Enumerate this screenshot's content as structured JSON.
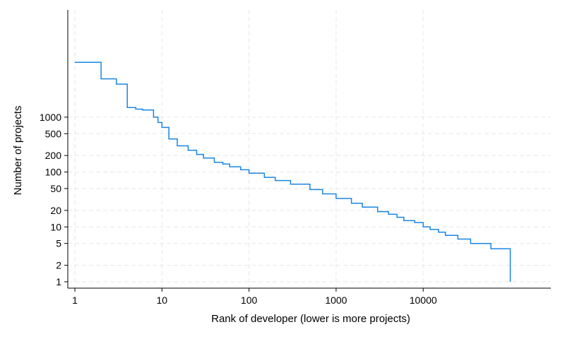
{
  "chart_data": {
    "type": "line",
    "title": "",
    "xlabel": "Rank of developer (lower is more projects)",
    "ylabel": "Number of projects",
    "x_scale": "log",
    "y_scale": "log",
    "xlim": [
      1,
      100000
    ],
    "grid": true,
    "line_style": "step",
    "colors": {
      "line": "#1a86e0",
      "grid": "#e6e6e6"
    },
    "x_ticks": [
      {
        "value": 1,
        "label": "1"
      },
      {
        "value": 10,
        "label": "10"
      },
      {
        "value": 100,
        "label": "100"
      },
      {
        "value": 1000,
        "label": "1000"
      },
      {
        "value": 10000,
        "label": "10000"
      }
    ],
    "y_ticks": [
      {
        "value": 1,
        "label": "1"
      },
      {
        "value": 2,
        "label": "2"
      },
      {
        "value": 5,
        "label": "5"
      },
      {
        "value": 10,
        "label": "10"
      },
      {
        "value": 20,
        "label": "20"
      },
      {
        "value": 50,
        "label": "50"
      },
      {
        "value": 100,
        "label": "100"
      },
      {
        "value": 200,
        "label": "200"
      },
      {
        "value": 500,
        "label": "500"
      },
      {
        "value": 1000,
        "label": "1000"
      }
    ],
    "series": [
      {
        "x": [
          1,
          2,
          3,
          4,
          5,
          6,
          7,
          8,
          9,
          10,
          12,
          15,
          20,
          25,
          30,
          40,
          50,
          60,
          80,
          100,
          150,
          200,
          300,
          500,
          700,
          1000,
          1500,
          2000,
          3000,
          4000,
          5000,
          6000,
          8000,
          10000,
          12000,
          15000,
          18000,
          25000,
          35000,
          60000,
          100000,
          100000
        ],
        "y": [
          10000,
          5000,
          4000,
          1500,
          1400,
          1350,
          1350,
          1000,
          800,
          650,
          400,
          300,
          250,
          210,
          180,
          150,
          140,
          125,
          110,
          95,
          80,
          70,
          60,
          48,
          40,
          33,
          27,
          23,
          19,
          17,
          15,
          13,
          12,
          10,
          9,
          8,
          7,
          6,
          5,
          4,
          2,
          1
        ]
      }
    ]
  }
}
